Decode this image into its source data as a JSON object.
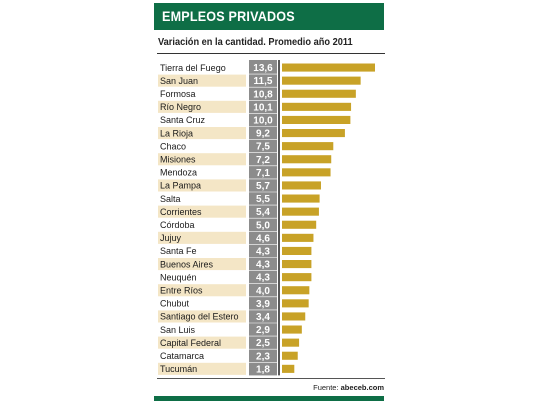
{
  "header": {
    "title": "EMPLEOS PRIVADOS"
  },
  "source": {
    "label": "Fuente:",
    "name": "abeceb.com"
  },
  "colors": {
    "header_green": "#0e6e46",
    "bar_gold": "#c8a227",
    "stripe": "#f4e6c6",
    "value_box": "#8c8c8c"
  },
  "chart_data": {
    "type": "bar",
    "orientation": "horizontal",
    "title": "Variación en la cantidad. Promedio año 2011",
    "categories": [
      "Tierra del Fuego",
      "San Juan",
      "Formosa",
      "Río Negro",
      "Santa Cruz",
      "La Rioja",
      "Chaco",
      "Misiones",
      "Mendoza",
      "La Pampa",
      "Salta",
      "Corrientes",
      "Córdoba",
      "Jujuy",
      "Santa Fe",
      "Buenos Aires",
      "Neuquén",
      "Entre Ríos",
      "Chubut",
      "Santiago del Estero",
      "San Luis",
      "Capital Federal",
      "Catamarca",
      "Tucumán"
    ],
    "values": [
      13.6,
      11.5,
      10.8,
      10.1,
      10.0,
      9.2,
      7.5,
      7.2,
      7.1,
      5.7,
      5.5,
      5.4,
      5.0,
      4.6,
      4.3,
      4.3,
      4.3,
      4.0,
      3.9,
      3.4,
      2.9,
      2.5,
      2.3,
      1.8
    ],
    "value_labels": [
      "13,6",
      "11,5",
      "10,8",
      "10,1",
      "10,0",
      "9,2",
      "7,5",
      "7,2",
      "7,1",
      "5,7",
      "5,5",
      "5,4",
      "5,0",
      "4,6",
      "4,3",
      "4,3",
      "4,3",
      "4,0",
      "3,9",
      "3,4",
      "2,9",
      "2,5",
      "2,3",
      "1,8"
    ],
    "xlim": [
      0,
      13.6
    ],
    "grid": false,
    "legend": "none"
  }
}
